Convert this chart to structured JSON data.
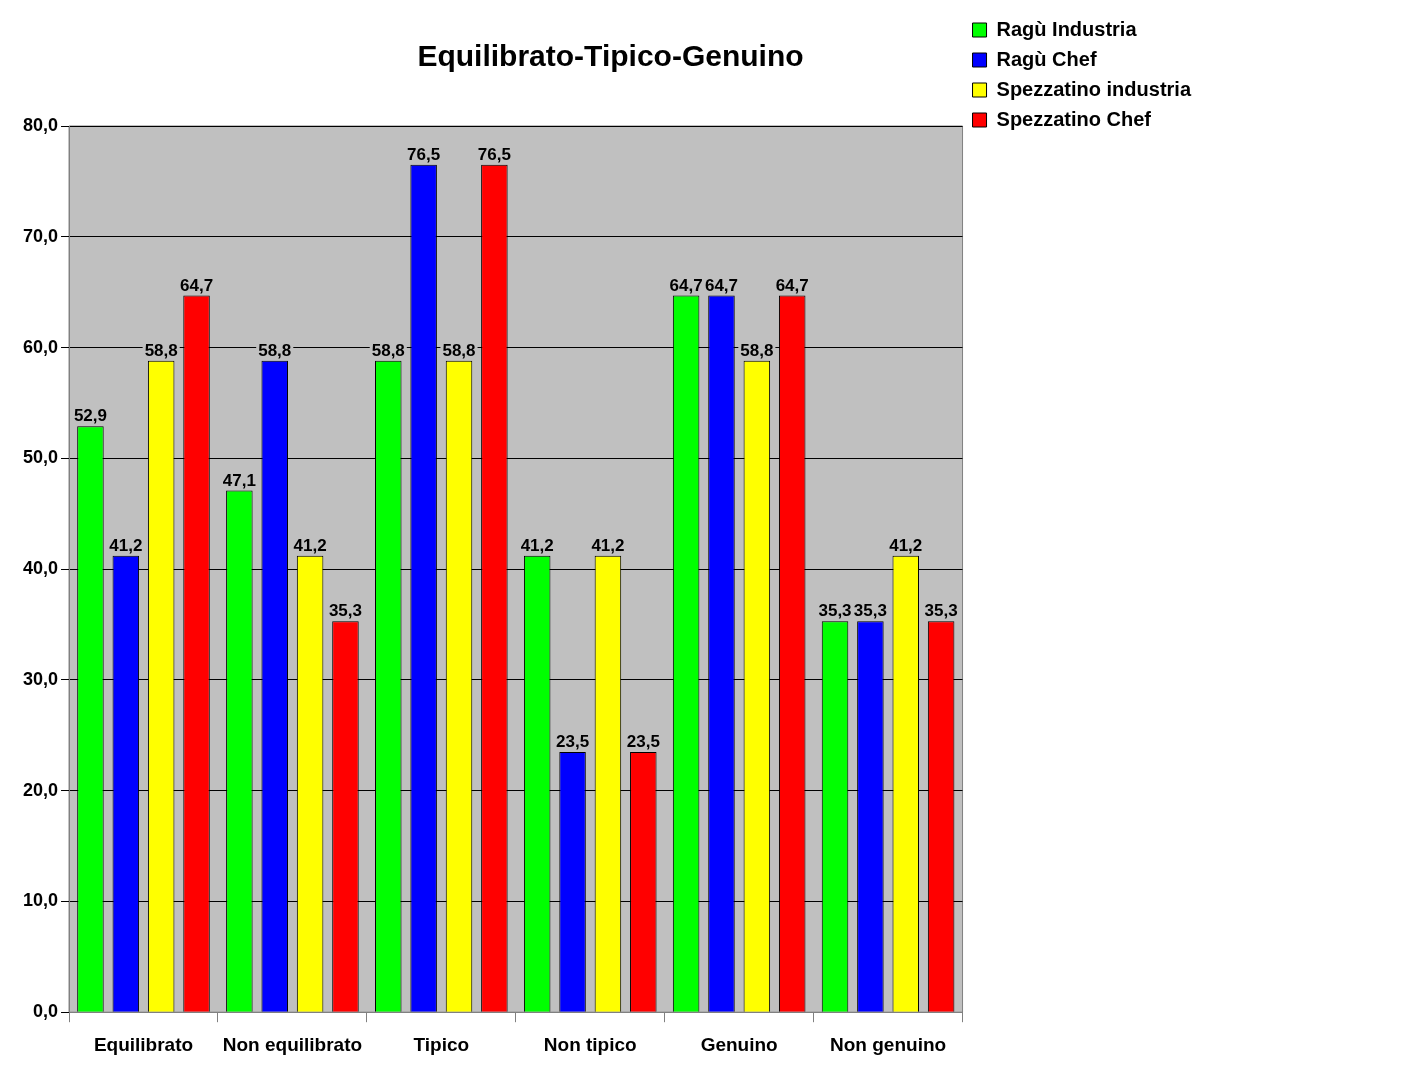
{
  "chart_data": {
    "type": "bar",
    "title": "Equilibrato-Tipico-Genuino",
    "categories": [
      "Equilibrato",
      "Non equilibrato",
      "Tipico",
      "Non tipico",
      "Genuino",
      "Non genuino"
    ],
    "series": [
      {
        "name": "Ragù Industria",
        "color": "#00ff00",
        "values": [
          52.9,
          47.1,
          58.8,
          41.2,
          64.7,
          35.3
        ],
        "value_labels": [
          "52,9",
          "47,1",
          "58,8",
          "41,2",
          "64,7",
          "35,3"
        ]
      },
      {
        "name": "Ragù Chef",
        "color": "#0000ff",
        "values": [
          41.2,
          58.8,
          76.5,
          23.5,
          64.7,
          35.3
        ],
        "value_labels": [
          "41,2",
          "58,8",
          "76,5",
          "23,5",
          "64,7",
          "35,3"
        ]
      },
      {
        "name": "Spezzatino industria",
        "color": "#ffff00",
        "values": [
          58.8,
          41.2,
          58.8,
          41.2,
          58.8,
          41.2
        ],
        "value_labels": [
          "58,8",
          "41,2",
          "58,8",
          "41,2",
          "58,8",
          "41,2"
        ]
      },
      {
        "name": "Spezzatino Chef",
        "color": "#ff0000",
        "values": [
          64.7,
          35.3,
          76.5,
          23.5,
          64.7,
          35.3
        ],
        "value_labels": [
          "64,7",
          "35,3",
          "76,5",
          "23,5",
          "64,7",
          "35,3"
        ]
      }
    ],
    "ylim": [
      0,
      80
    ],
    "yticks": [
      {
        "value": 0,
        "label": "0,0"
      },
      {
        "value": 10,
        "label": "10,0"
      },
      {
        "value": 20,
        "label": "20,0"
      },
      {
        "value": 30,
        "label": "30,0"
      },
      {
        "value": 40,
        "label": "40,0"
      },
      {
        "value": 50,
        "label": "50,0"
      },
      {
        "value": 60,
        "label": "60,0"
      },
      {
        "value": 70,
        "label": "70,0"
      },
      {
        "value": 80,
        "label": "80,0"
      }
    ],
    "grid": "y",
    "legend": "top right"
  }
}
